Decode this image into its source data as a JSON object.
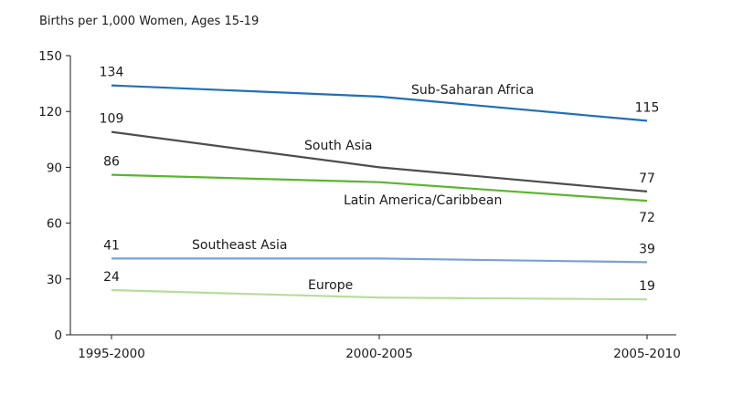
{
  "chart_data": {
    "type": "line",
    "title": "",
    "ylabel": "Births per 1,000 Women, Ages 15-19",
    "xlabel": "",
    "categories": [
      "1995-2000",
      "2000-2005",
      "2005-2010"
    ],
    "ylim": [
      0,
      150
    ],
    "yticks": [
      "0",
      "30",
      "60",
      "90",
      "120",
      "150"
    ],
    "grid": false,
    "legend": "none (series labeled inline)",
    "series": [
      {
        "name": "Sub-Saharan Africa",
        "values": [
          134,
          128,
          115
        ],
        "color": "#1f6fba",
        "labels": [
          "134",
          "",
          "115"
        ]
      },
      {
        "name": "South Asia",
        "values": [
          109,
          90,
          77
        ],
        "color": "#4d4d4d",
        "labels": [
          "109",
          "",
          "77"
        ]
      },
      {
        "name": "Latin America/Caribbean",
        "values": [
          86,
          82,
          72
        ],
        "color": "#5bb531",
        "labels": [
          "86",
          "",
          "72"
        ]
      },
      {
        "name": "Southeast Asia",
        "values": [
          41,
          41,
          39
        ],
        "color": "#7aa0d8",
        "labels": [
          "41",
          "",
          "39"
        ]
      },
      {
        "name": "Europe",
        "values": [
          24,
          20,
          19
        ],
        "color": "#b8dc9a",
        "labels": [
          "24",
          "",
          "19"
        ]
      }
    ]
  }
}
